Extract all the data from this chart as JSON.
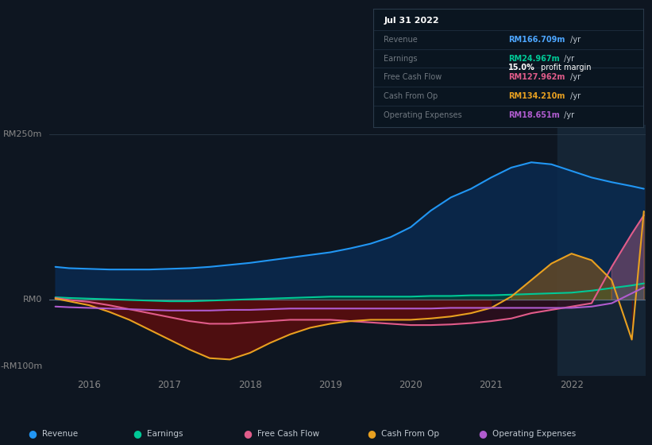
{
  "bg_color": "#0e1621",
  "chart_bg": "#0e1621",
  "title": "Jul 31 2022",
  "ylabel_top": "RM250m",
  "ylabel_zero": "RM0",
  "ylabel_bottom": "-RM100m",
  "info_box": {
    "title": "Jul 31 2022",
    "rows": [
      {
        "label": "Revenue",
        "value": "RM166.709m",
        "color": "#4da6ff"
      },
      {
        "label": "Earnings",
        "value": "RM24.967m",
        "color": "#00c896"
      },
      {
        "label": "",
        "value": "15.0%",
        "suffix": " profit margin",
        "color": "#ffffff"
      },
      {
        "label": "Free Cash Flow",
        "value": "RM127.962m",
        "color": "#e05c8a"
      },
      {
        "label": "Cash From Op",
        "value": "RM134.210m",
        "color": "#e8a020"
      },
      {
        "label": "Operating Expenses",
        "value": "RM18.651m",
        "color": "#b05ccf"
      }
    ]
  },
  "xlim": [
    2015.5,
    2022.92
  ],
  "ylim": [
    -115,
    265
  ],
  "xticks": [
    2016,
    2017,
    2018,
    2019,
    2020,
    2021,
    2022
  ],
  "highlight_x_start": 2021.83,
  "highlight_x_end": 2022.92,
  "series": {
    "revenue": {
      "color": "#2196f3",
      "label": "Revenue",
      "x": [
        2015.58,
        2015.75,
        2016.0,
        2016.25,
        2016.5,
        2016.75,
        2017.0,
        2017.25,
        2017.5,
        2017.75,
        2018.0,
        2018.25,
        2018.5,
        2018.75,
        2019.0,
        2019.25,
        2019.5,
        2019.75,
        2020.0,
        2020.25,
        2020.5,
        2020.75,
        2021.0,
        2021.25,
        2021.5,
        2021.75,
        2022.0,
        2022.25,
        2022.5,
        2022.75,
        2022.9
      ],
      "y": [
        50,
        48,
        47,
        46,
        46,
        46,
        47,
        48,
        50,
        53,
        56,
        60,
        64,
        68,
        72,
        78,
        85,
        95,
        110,
        135,
        155,
        168,
        185,
        200,
        208,
        205,
        195,
        185,
        178,
        172,
        168
      ]
    },
    "earnings": {
      "color": "#00c896",
      "label": "Earnings",
      "x": [
        2015.58,
        2015.75,
        2016.0,
        2016.25,
        2016.5,
        2016.75,
        2017.0,
        2017.25,
        2017.5,
        2017.75,
        2018.0,
        2018.25,
        2018.5,
        2018.75,
        2019.0,
        2019.25,
        2019.5,
        2019.75,
        2020.0,
        2020.25,
        2020.5,
        2020.75,
        2021.0,
        2021.25,
        2021.5,
        2021.75,
        2022.0,
        2022.25,
        2022.5,
        2022.75,
        2022.9
      ],
      "y": [
        4,
        3,
        2,
        1,
        0,
        -1,
        -2,
        -2,
        -1,
        0,
        1,
        2,
        3,
        4,
        5,
        5,
        5,
        5,
        5,
        6,
        6,
        7,
        7,
        8,
        9,
        10,
        11,
        14,
        18,
        22,
        25
      ]
    },
    "free_cash_flow": {
      "color": "#e05c8a",
      "label": "Free Cash Flow",
      "x": [
        2015.58,
        2015.75,
        2016.0,
        2016.25,
        2016.5,
        2016.75,
        2017.0,
        2017.25,
        2017.5,
        2017.75,
        2018.0,
        2018.25,
        2018.5,
        2018.75,
        2019.0,
        2019.25,
        2019.5,
        2019.75,
        2020.0,
        2020.25,
        2020.5,
        2020.75,
        2021.0,
        2021.25,
        2021.5,
        2021.75,
        2022.0,
        2022.25,
        2022.5,
        2022.75,
        2022.9
      ],
      "y": [
        3,
        0,
        -3,
        -8,
        -14,
        -20,
        -26,
        -32,
        -36,
        -36,
        -34,
        -32,
        -30,
        -30,
        -30,
        -32,
        -34,
        -36,
        -38,
        -38,
        -37,
        -35,
        -32,
        -28,
        -20,
        -15,
        -10,
        -5,
        50,
        100,
        128
      ]
    },
    "cash_from_op": {
      "color": "#e8a020",
      "label": "Cash From Op",
      "x": [
        2015.58,
        2015.75,
        2016.0,
        2016.25,
        2016.5,
        2016.75,
        2017.0,
        2017.25,
        2017.5,
        2017.75,
        2018.0,
        2018.25,
        2018.5,
        2018.75,
        2019.0,
        2019.25,
        2019.5,
        2019.75,
        2020.0,
        2020.25,
        2020.5,
        2020.75,
        2021.0,
        2021.25,
        2021.5,
        2021.75,
        2022.0,
        2022.25,
        2022.5,
        2022.75,
        2022.9
      ],
      "y": [
        2,
        -2,
        -8,
        -18,
        -30,
        -45,
        -60,
        -75,
        -88,
        -90,
        -80,
        -65,
        -52,
        -42,
        -36,
        -32,
        -30,
        -30,
        -30,
        -28,
        -25,
        -20,
        -12,
        5,
        30,
        55,
        70,
        60,
        30,
        -60,
        134
      ]
    },
    "operating_expenses": {
      "color": "#b05ccf",
      "label": "Operating Expenses",
      "x": [
        2015.58,
        2015.75,
        2016.0,
        2016.25,
        2016.5,
        2016.75,
        2017.0,
        2017.25,
        2017.5,
        2017.75,
        2018.0,
        2018.25,
        2018.5,
        2018.75,
        2019.0,
        2019.25,
        2019.5,
        2019.75,
        2020.0,
        2020.25,
        2020.5,
        2020.75,
        2021.0,
        2021.25,
        2021.5,
        2021.75,
        2022.0,
        2022.25,
        2022.5,
        2022.75,
        2022.9
      ],
      "y": [
        -10,
        -11,
        -12,
        -13,
        -14,
        -15,
        -16,
        -16,
        -16,
        -15,
        -15,
        -14,
        -13,
        -13,
        -13,
        -13,
        -13,
        -13,
        -13,
        -13,
        -12,
        -12,
        -12,
        -12,
        -12,
        -12,
        -12,
        -10,
        -5,
        10,
        19
      ]
    }
  },
  "legend": [
    {
      "label": "Revenue",
      "color": "#2196f3"
    },
    {
      "label": "Earnings",
      "color": "#00c896"
    },
    {
      "label": "Free Cash Flow",
      "color": "#e05c8a"
    },
    {
      "label": "Cash From Op",
      "color": "#e8a020"
    },
    {
      "label": "Operating Expenses",
      "color": "#b05ccf"
    }
  ]
}
